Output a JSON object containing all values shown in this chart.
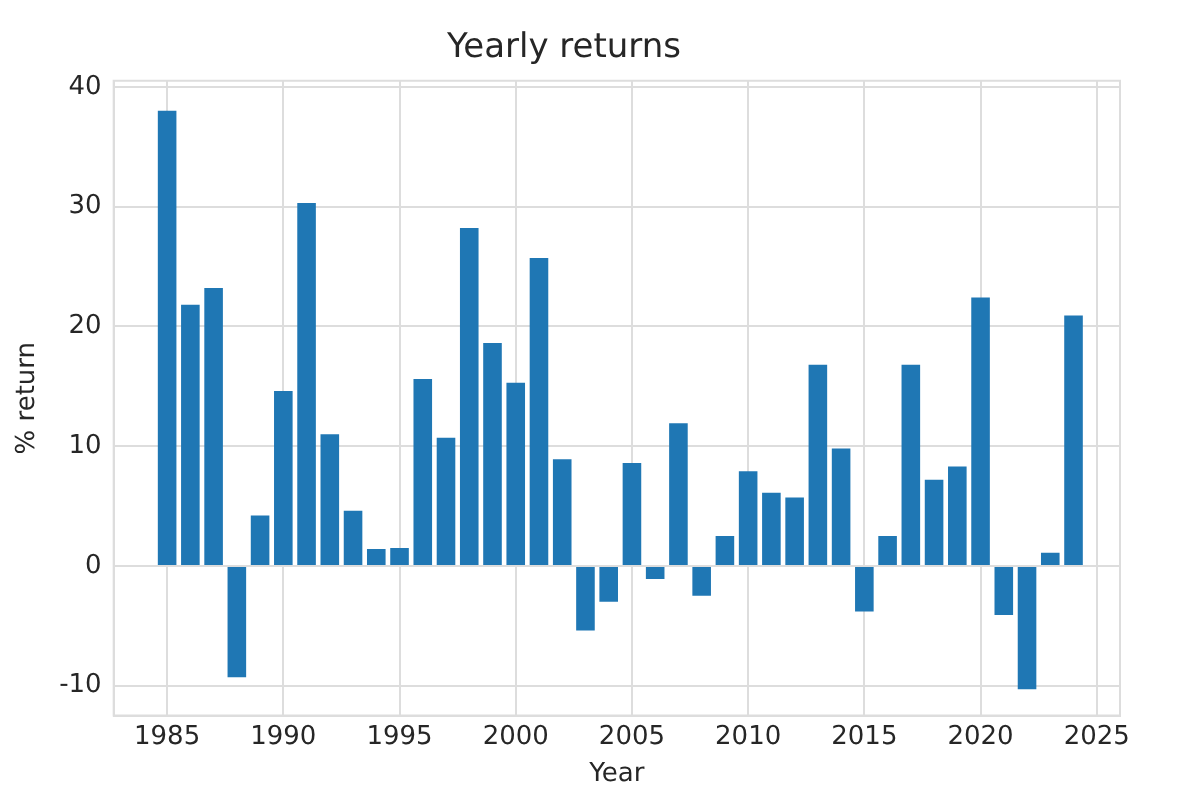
{
  "chart_data": {
    "type": "bar",
    "title": "Yearly returns",
    "xlabel": "Year",
    "ylabel": "% return",
    "x": [
      1985,
      1986,
      1987,
      1988,
      1989,
      1990,
      1991,
      1992,
      1993,
      1994,
      1995,
      1996,
      1997,
      1998,
      1999,
      2000,
      2001,
      2002,
      2003,
      2004,
      2005,
      2006,
      2007,
      2008,
      2009,
      2010,
      2011,
      2012,
      2013,
      2014,
      2015,
      2016,
      2017,
      2018,
      2019,
      2020,
      2021,
      2022,
      2023,
      2024
    ],
    "values": [
      38,
      21.8,
      23.2,
      -9.3,
      4.2,
      14.6,
      30.3,
      11,
      4.6,
      1.4,
      1.5,
      15.6,
      10.7,
      28.2,
      18.6,
      15.3,
      25.7,
      8.9,
      -5.4,
      -3,
      8.6,
      -1.1,
      11.9,
      -2.5,
      2.5,
      7.9,
      6.1,
      5.7,
      16.8,
      9.8,
      -3.8,
      2.5,
      16.8,
      7.2,
      8.3,
      22.4,
      -4.1,
      -10.3,
      1.1,
      20.9
    ],
    "color": "#1f77b4",
    "xlim": [
      1982.7,
      2026
    ],
    "xticks": [
      1985,
      1990,
      1995,
      2000,
      2005,
      2010,
      2015,
      2020,
      2025
    ],
    "ylim": [
      -12.5,
      40.5
    ],
    "yticks": [
      -10,
      0,
      10,
      20,
      30,
      40
    ],
    "grid": true
  }
}
